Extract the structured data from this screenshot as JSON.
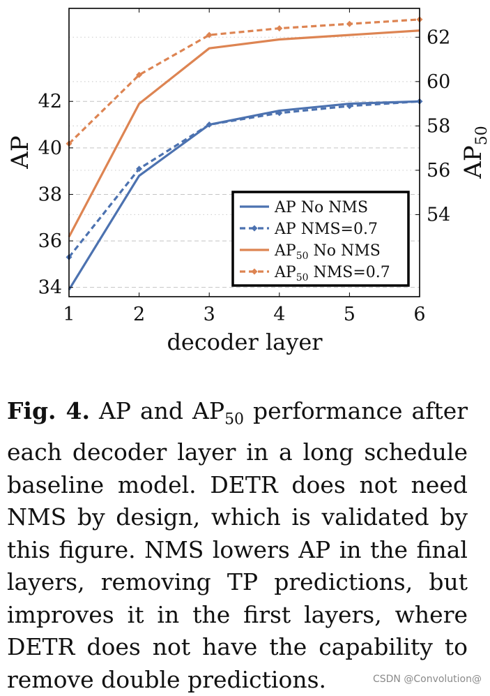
{
  "chart_data": {
    "type": "line",
    "x": [
      1,
      2,
      3,
      4,
      5,
      6
    ],
    "xlabel": "decoder layer",
    "ylabel_left": "AP",
    "ylabel_right_base": "AP",
    "ylabel_right_sub": "50",
    "xlim": [
      1,
      6
    ],
    "ylim_left": [
      33.6,
      46.0
    ],
    "ylim_right": [
      50.3,
      63.3
    ],
    "yticks_left": [
      34,
      36,
      38,
      40,
      42
    ],
    "yticks_right": [
      54,
      56,
      58,
      60,
      62
    ],
    "xticks": [
      1,
      2,
      3,
      4,
      5,
      6
    ],
    "series": [
      {
        "name": "AP No NMS",
        "label_base": "AP",
        "label_sub": "",
        "label_rest": " No NMS",
        "axis": "left",
        "color": "#4c72b0",
        "style": "solid",
        "values": [
          33.9,
          38.8,
          41.0,
          41.6,
          41.9,
          42.0
        ]
      },
      {
        "name": "AP NMS=0.7",
        "label_base": "AP",
        "label_sub": "",
        "label_rest": " NMS=0.7",
        "axis": "left",
        "color": "#4c72b0",
        "style": "dashed",
        "values": [
          35.3,
          39.1,
          41.0,
          41.5,
          41.8,
          42.0
        ]
      },
      {
        "name": "AP50 No NMS",
        "label_base": "AP",
        "label_sub": "50",
        "label_rest": " No NMS",
        "axis": "right",
        "color": "#dd8452",
        "style": "solid",
        "values": [
          53.0,
          59.0,
          61.5,
          61.9,
          62.1,
          62.3
        ]
      },
      {
        "name": "AP50 NMS=0.7",
        "label_base": "AP",
        "label_sub": "50",
        "label_rest": " NMS=0.7",
        "axis": "right",
        "color": "#dd8452",
        "style": "dashed",
        "values": [
          57.2,
          60.3,
          62.1,
          62.4,
          62.6,
          62.8
        ]
      }
    ],
    "legend_position": "bottom-right",
    "grid": true
  },
  "caption": {
    "label": "Fig. 4.",
    "text_before_sub": " AP and AP",
    "sub": "50",
    "text_after_sub": " performance after each decoder layer in a long schedule baseline model. DETR does not need NMS by design, which is validated by this figure. NMS lowers AP in the final layers, removing TP predictions, but improves it in the first layers, where DETR does not have the capability to remove double predictions."
  },
  "watermark": "CSDN @Convolution@"
}
